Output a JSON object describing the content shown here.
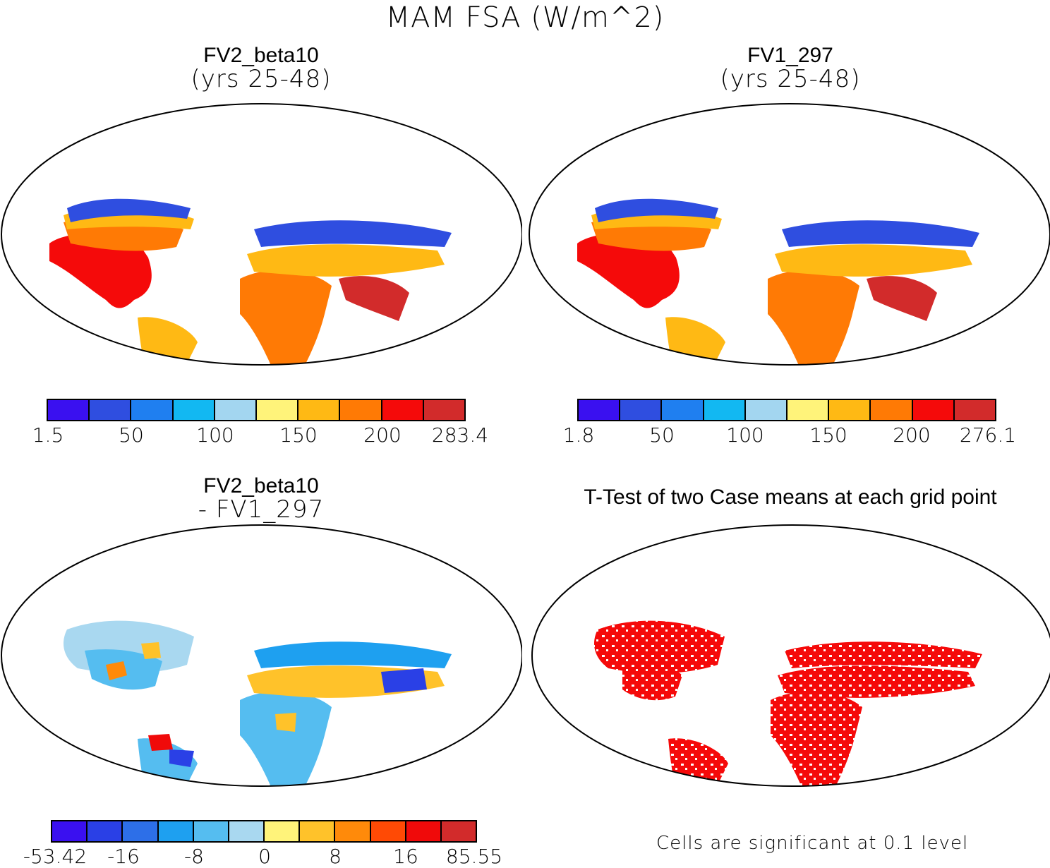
{
  "title": "MAM FSA (W/m^2)",
  "panels": [
    {
      "title": "FV2_beta10",
      "subtitle": "(yrs 25-48)"
    },
    {
      "title": "FV1_297",
      "subtitle": "(yrs 25-48)"
    },
    {
      "title": "FV2_beta10",
      "subtitle": "- FV1_297"
    },
    {
      "title": "T-Test of two Case means at each grid point",
      "subtitle": ""
    }
  ],
  "colorbars": [
    {
      "colors": [
        "#3a10f0",
        "#2f4ee0",
        "#1f7ff0",
        "#12b8f2",
        "#a3d6f0",
        "#fff37a",
        "#ffb914",
        "#ff7a05",
        "#f50a0a",
        "#d22b2b"
      ],
      "labels": [
        "1.5",
        "50",
        "100",
        "150",
        "200",
        "283.4"
      ]
    },
    {
      "colors": [
        "#3a10f0",
        "#2f4ee0",
        "#1f7ff0",
        "#12b8f2",
        "#a3d6f0",
        "#fff37a",
        "#ffb914",
        "#ff7a05",
        "#f50a0a",
        "#d22b2b"
      ],
      "labels": [
        "1.8",
        "50",
        "100",
        "150",
        "200",
        "276.1"
      ]
    },
    {
      "colors": [
        "#3a10f0",
        "#2a40e6",
        "#2d6fe8",
        "#1ea0f0",
        "#55bdf0",
        "#a9d8f0",
        "#fff37a",
        "#ffc22a",
        "#ff8a0a",
        "#ff4a05",
        "#f00a0a",
        "#d22b2b"
      ],
      "labels": [
        "-53.42",
        "-16",
        "-8",
        "0",
        "8",
        "16",
        "85.55"
      ]
    }
  ],
  "note": "Cells are significant at 0.1 level"
}
